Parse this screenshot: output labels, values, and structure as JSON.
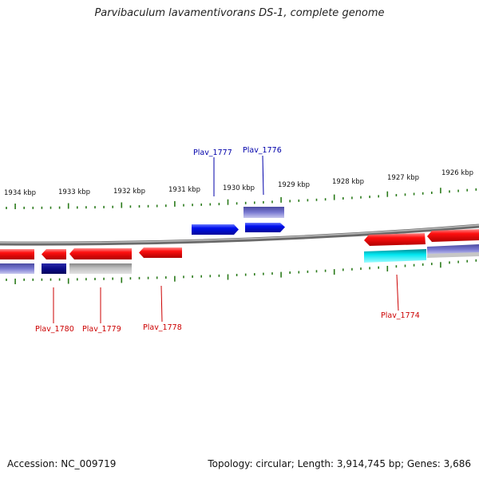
{
  "title": "Parvibaculum lavamentivorans DS-1, complete genome",
  "footer": {
    "accession": "Accession: NC_009719",
    "summary": "Topology: circular; Length: 3,914,745 bp; Genes: 3,686"
  },
  "colors": {
    "backbone": "#8a8a8a",
    "ticks": "#2a7a1a",
    "forward_gene": "#0010ee",
    "forward_label": "#0000aa",
    "reverse_gene": "#ee0000",
    "reverse_label": "#cc0000",
    "slate": "#6e6ec8",
    "navy": "#0a0a88",
    "grey": "#b8b8b8",
    "cyan": "#00e0e8"
  },
  "scale_labels": [
    "1934 kbp",
    "1933 kbp",
    "1932 kbp",
    "1931 kbp",
    "1930 kbp",
    "1929 kbp",
    "1928 kbp",
    "1927 kbp",
    "1926 kbp"
  ],
  "gene_labels": {
    "plav_1777": "Plav_1777",
    "plav_1776": "Plav_1776",
    "plav_1780": "Plav_1780",
    "plav_1779": "Plav_1779",
    "plav_1778": "Plav_1778",
    "plav_1774": "Plav_1774"
  }
}
